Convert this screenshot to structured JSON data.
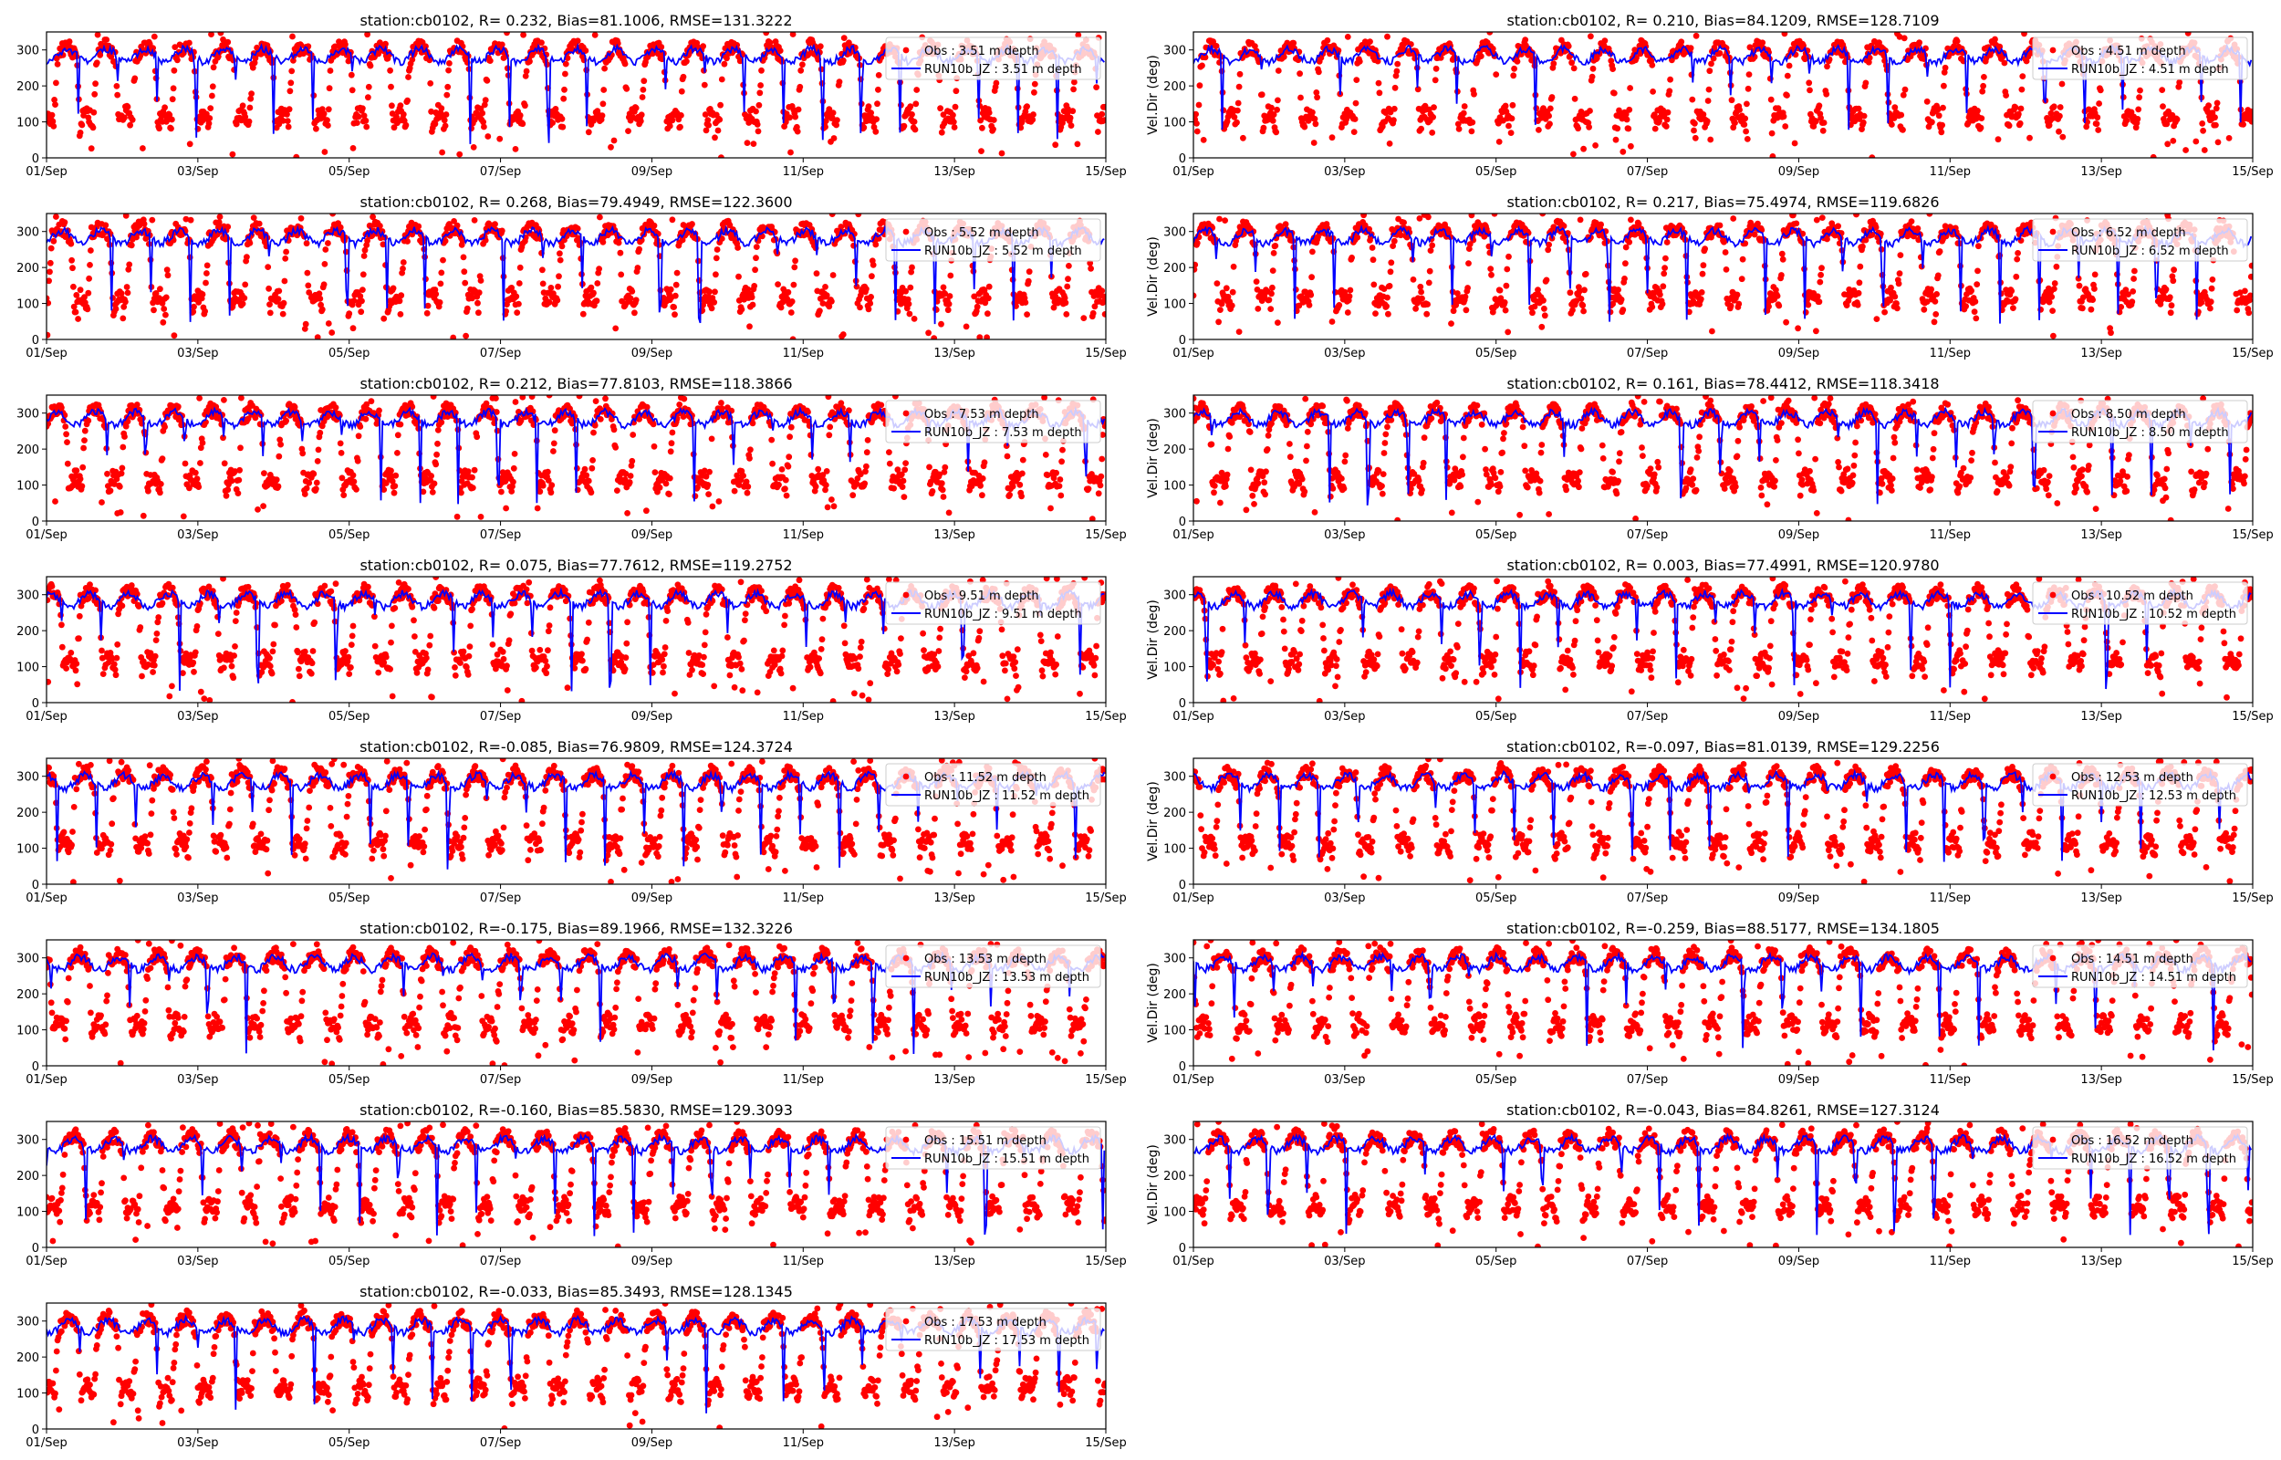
{
  "figure": {
    "station": "cb0102",
    "x_ticks": [
      "01/Sep",
      "03/Sep",
      "05/Sep",
      "07/Sep",
      "09/Sep",
      "11/Sep",
      "13/Sep",
      "15/Sep"
    ],
    "y_ticks": [
      "0",
      "100",
      "200",
      "300"
    ],
    "ylim": [
      0,
      350
    ],
    "obs_color": "#ff0000",
    "model_color": "#0000ff"
  },
  "chart_data": [
    {
      "type": "line",
      "title": "station:cb0102, R= 0.232, Bias=81.1006, RMSE=131.3222",
      "ylabel": "",
      "legend": [
        "Obs : 3.51 m depth",
        "RUN10b_JZ : 3.51 m depth"
      ],
      "legend_position": "top-right",
      "grid": false,
      "ylim": [
        0,
        350
      ],
      "xlim": [
        "01/Sep",
        "15/Sep"
      ]
    },
    {
      "type": "line",
      "title": "station:cb0102, R= 0.210, Bias=84.1209, RMSE=128.7109",
      "ylabel": "Vel.Dir (deg)",
      "legend": [
        "Obs : 4.51 m depth",
        "RUN10b_JZ : 4.51 m depth"
      ],
      "legend_position": "top-right",
      "grid": false,
      "ylim": [
        0,
        350
      ],
      "xlim": [
        "01/Sep",
        "15/Sep"
      ]
    },
    {
      "type": "line",
      "title": "station:cb0102, R= 0.268, Bias=79.4949, RMSE=122.3600",
      "ylabel": "",
      "legend": [
        "Obs : 5.52 m depth",
        "RUN10b_JZ : 5.52 m depth"
      ],
      "legend_position": "top-right",
      "grid": false,
      "ylim": [
        0,
        350
      ],
      "xlim": [
        "01/Sep",
        "15/Sep"
      ]
    },
    {
      "type": "line",
      "title": "station:cb0102, R= 0.217, Bias=75.4974, RMSE=119.6826",
      "ylabel": "Vel.Dir (deg)",
      "legend": [
        "Obs : 6.52 m depth",
        "RUN10b_JZ : 6.52 m depth"
      ],
      "legend_position": "top-right",
      "grid": false,
      "ylim": [
        0,
        350
      ],
      "xlim": [
        "01/Sep",
        "15/Sep"
      ]
    },
    {
      "type": "line",
      "title": "station:cb0102, R= 0.212, Bias=77.8103, RMSE=118.3866",
      "ylabel": "",
      "legend": [
        "Obs : 7.53 m depth",
        "RUN10b_JZ : 7.53 m depth"
      ],
      "legend_position": "top-right",
      "grid": false,
      "ylim": [
        0,
        350
      ],
      "xlim": [
        "01/Sep",
        "15/Sep"
      ]
    },
    {
      "type": "line",
      "title": "station:cb0102, R= 0.161, Bias=78.4412, RMSE=118.3418",
      "ylabel": "Vel.Dir (deg)",
      "legend": [
        "Obs : 8.50 m depth",
        "RUN10b_JZ : 8.50 m depth"
      ],
      "legend_position": "top-right",
      "grid": false,
      "ylim": [
        0,
        350
      ],
      "xlim": [
        "01/Sep",
        "15/Sep"
      ]
    },
    {
      "type": "line",
      "title": "station:cb0102, R= 0.075, Bias=77.7612, RMSE=119.2752",
      "ylabel": "",
      "legend": [
        "Obs : 9.51 m depth",
        "RUN10b_JZ : 9.51 m depth"
      ],
      "legend_position": "top-right",
      "grid": false,
      "ylim": [
        0,
        350
      ],
      "xlim": [
        "01/Sep",
        "15/Sep"
      ]
    },
    {
      "type": "line",
      "title": "station:cb0102, R= 0.003, Bias=77.4991, RMSE=120.9780",
      "ylabel": "Vel.Dir (deg)",
      "legend": [
        "Obs : 10.52 m depth",
        "RUN10b_JZ : 10.52 m depth"
      ],
      "legend_position": "top-right",
      "grid": false,
      "ylim": [
        0,
        350
      ],
      "xlim": [
        "01/Sep",
        "15/Sep"
      ]
    },
    {
      "type": "line",
      "title": "station:cb0102, R=-0.085, Bias=76.9809, RMSE=124.3724",
      "ylabel": "",
      "legend": [
        "Obs : 11.52 m depth",
        "RUN10b_JZ : 11.52 m depth"
      ],
      "legend_position": "top-right",
      "grid": false,
      "ylim": [
        0,
        350
      ],
      "xlim": [
        "01/Sep",
        "15/Sep"
      ]
    },
    {
      "type": "line",
      "title": "station:cb0102, R=-0.097, Bias=81.0139, RMSE=129.2256",
      "ylabel": "Vel.Dir (deg)",
      "legend": [
        "Obs : 12.53 m depth",
        "RUN10b_JZ : 12.53 m depth"
      ],
      "legend_position": "top-right",
      "grid": false,
      "ylim": [
        0,
        350
      ],
      "xlim": [
        "01/Sep",
        "15/Sep"
      ]
    },
    {
      "type": "line",
      "title": "station:cb0102, R=-0.175, Bias=89.1966, RMSE=132.3226",
      "ylabel": "",
      "legend": [
        "Obs : 13.53 m depth",
        "RUN10b_JZ : 13.53 m depth"
      ],
      "legend_position": "top-right",
      "grid": false,
      "ylim": [
        0,
        350
      ],
      "xlim": [
        "01/Sep",
        "15/Sep"
      ]
    },
    {
      "type": "line",
      "title": "station:cb0102, R=-0.259, Bias=88.5177, RMSE=134.1805",
      "ylabel": "Vel.Dir (deg)",
      "legend": [
        "Obs : 14.51 m depth",
        "RUN10b_JZ : 14.51 m depth"
      ],
      "legend_position": "top-right",
      "grid": false,
      "ylim": [
        0,
        350
      ],
      "xlim": [
        "01/Sep",
        "15/Sep"
      ]
    },
    {
      "type": "line",
      "title": "station:cb0102, R=-0.160, Bias=85.5830, RMSE=129.3093",
      "ylabel": "",
      "legend": [
        "Obs : 15.51 m depth",
        "RUN10b_JZ : 15.51 m depth"
      ],
      "legend_position": "top-right",
      "grid": false,
      "ylim": [
        0,
        350
      ],
      "xlim": [
        "01/Sep",
        "15/Sep"
      ]
    },
    {
      "type": "line",
      "title": "station:cb0102, R=-0.043, Bias=84.8261, RMSE=127.3124",
      "ylabel": "Vel.Dir (deg)",
      "legend": [
        "Obs : 16.52 m depth",
        "RUN10b_JZ : 16.52 m depth"
      ],
      "legend_position": "top-right",
      "grid": false,
      "ylim": [
        0,
        350
      ],
      "xlim": [
        "01/Sep",
        "15/Sep"
      ]
    },
    {
      "type": "line",
      "title": "station:cb0102, R=-0.033, Bias=85.3493, RMSE=128.1345",
      "ylabel": "",
      "legend": [
        "Obs : 17.53 m depth",
        "RUN10b_JZ : 17.53 m depth"
      ],
      "legend_position": "top-right",
      "grid": false,
      "ylim": [
        0,
        350
      ],
      "xlim": [
        "01/Sep",
        "15/Sep"
      ]
    }
  ]
}
